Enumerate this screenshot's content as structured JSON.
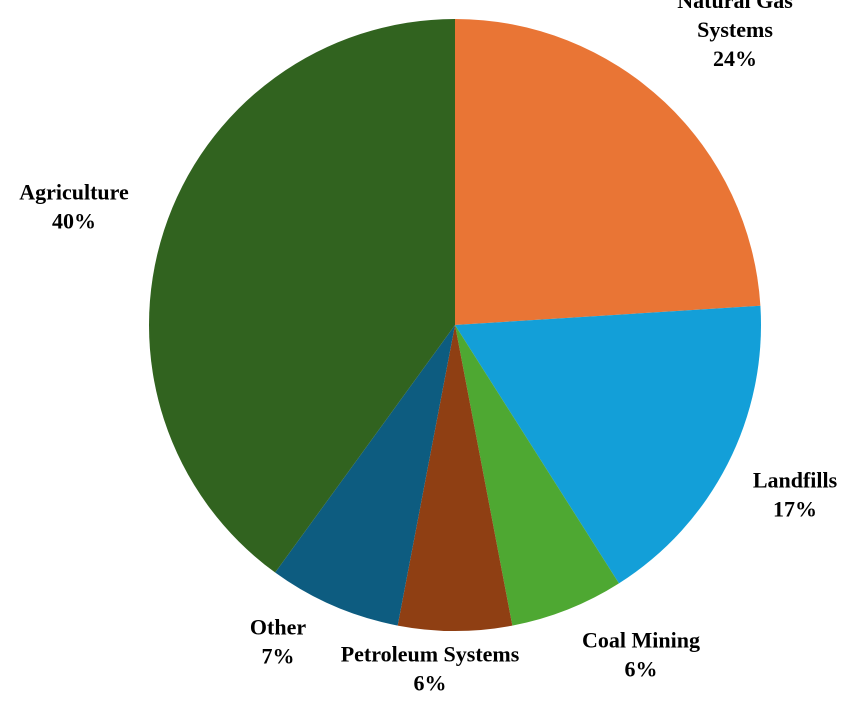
{
  "chart_data": {
    "type": "pie",
    "title": "",
    "slices": [
      {
        "name": "Natural Gas Systems",
        "label_lines": [
          "Natural Gas",
          "Systems"
        ],
        "value": 24,
        "value_label": "24%",
        "color": "#E97535"
      },
      {
        "name": "Landfills",
        "label_lines": [
          "Landfills"
        ],
        "value": 17,
        "value_label": "17%",
        "color": "#139FD8"
      },
      {
        "name": "Coal Mining",
        "label_lines": [
          "Coal Mining"
        ],
        "value": 6,
        "value_label": "6%",
        "color": "#4EA832"
      },
      {
        "name": "Petroleum Systems",
        "label_lines": [
          "Petroleum Systems"
        ],
        "value": 6,
        "value_label": "6%",
        "color": "#8F3F13"
      },
      {
        "name": "Other",
        "label_lines": [
          "Other"
        ],
        "value": 7,
        "value_label": "7%",
        "color": "#0D5C80"
      },
      {
        "name": "Agriculture",
        "label_lines": [
          "Agriculture"
        ],
        "value": 40,
        "value_label": "40%",
        "color": "#31631F"
      }
    ],
    "start_angle": "12 o'clock",
    "direction": "clockwise",
    "legend": "none"
  }
}
